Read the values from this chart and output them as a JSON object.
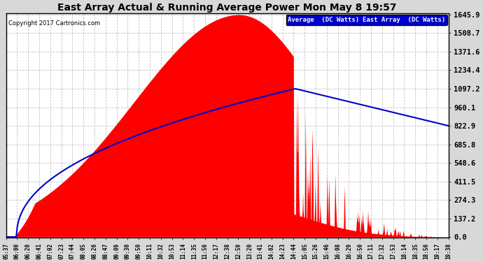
{
  "title": "East Array Actual & Running Average Power Mon May 8 19:57",
  "copyright": "Copyright 2017 Cartronics.com",
  "legend_avg": "Average  (DC Watts)",
  "legend_east": "East Array  (DC Watts)",
  "ylabel_ticks": [
    0.0,
    137.2,
    274.3,
    411.5,
    548.6,
    685.8,
    822.9,
    960.1,
    1097.2,
    1234.4,
    1371.6,
    1508.7,
    1645.9
  ],
  "x_labels": [
    "05:37",
    "06:00",
    "06:20",
    "06:41",
    "07:02",
    "07:23",
    "07:44",
    "08:05",
    "08:26",
    "08:47",
    "09:09",
    "09:30",
    "09:50",
    "10:11",
    "10:32",
    "10:53",
    "11:14",
    "11:35",
    "11:56",
    "12:17",
    "12:38",
    "12:59",
    "13:20",
    "13:41",
    "14:02",
    "14:23",
    "14:44",
    "15:05",
    "15:26",
    "15:46",
    "16:08",
    "16:29",
    "16:50",
    "17:11",
    "17:32",
    "17:53",
    "18:14",
    "18:35",
    "18:56",
    "19:17",
    "19:38"
  ],
  "bg_color": "#d8d8d8",
  "plot_bg_color": "#ffffff",
  "fill_color": "#ff0000",
  "line_color": "#0000cc",
  "title_color": "#000000",
  "grid_color": "#bbbbbb",
  "ymax": 1645.9,
  "total_minutes": 841
}
